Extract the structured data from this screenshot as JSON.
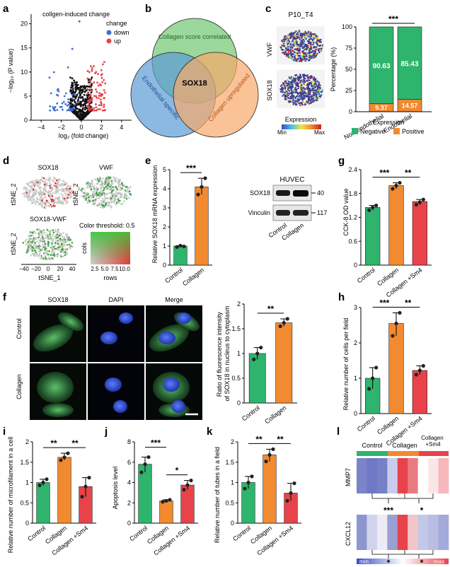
{
  "colors": {
    "green": "#2fb46e",
    "orange": "#f28a30",
    "red": "#e8434b",
    "blue": "#3d6fd6",
    "black": "#111111"
  },
  "panels": {
    "a": {
      "label": "a",
      "title": "collgen-induced change",
      "legend_title": "change",
      "legend_down": "down",
      "legend_up": "up",
      "ylabel": "−log₁₀ (P value)",
      "xlabel": "log₂ (fold change)",
      "xticks": [
        "−4",
        "−2",
        "0",
        "2",
        "4"
      ],
      "yticks": [
        "0",
        "5",
        "10",
        "15",
        "20"
      ]
    },
    "b": {
      "label": "b",
      "circle1": "Collagen score correlated",
      "circle2": "Endothelial specific",
      "circle3": "Collagen upregulated",
      "center": "SOX18"
    },
    "c": {
      "label": "c",
      "sample": "P10_T4",
      "row1": "VWF",
      "row2": "SOX18",
      "expr_title": "Expression",
      "expr_min": "Min",
      "expr_max": "Max",
      "ylabel": "Percentage (%)",
      "yticks": [
        "0",
        "25",
        "50",
        "75",
        "100"
      ],
      "sig": "***",
      "cats": [
        "Non-endothelial",
        "Endothelial"
      ],
      "neg": [
        "90.63",
        "85.43"
      ],
      "pos": [
        "9.37",
        "14.57"
      ],
      "legend_title": "Expression",
      "legend_neg": "Negative",
      "legend_pos": "Positive"
    },
    "d": {
      "label": "d",
      "p1": "SOX18",
      "p2": "VWF",
      "p3": "SOX18-VWF",
      "tsne1": "tSNE_1",
      "tsne2": "tSNE_2",
      "threshold": "Color threshold: 0.5",
      "cols": "cols",
      "rows": "rows",
      "xticks": [
        "−40",
        "−20",
        "0",
        "20",
        "40"
      ],
      "rowticks": [
        "2.5",
        "5.0",
        "7.5",
        "10.0"
      ]
    },
    "e": {
      "label": "e",
      "ylabel": "Relative SOX18 mRNA expression",
      "sig": "***",
      "wb_title": "HUVEC",
      "wb_row1": "SOX18",
      "wb_row2": "Vinculin",
      "wb_kd1": "40",
      "wb_kd2": "117",
      "wb_cols": [
        "Control",
        "Collagen"
      ]
    },
    "f": {
      "label": "f",
      "cols": [
        "SOX18",
        "DAPI",
        "Merge"
      ],
      "rows": [
        "Control",
        "Collagen"
      ],
      "ylabel": "Ratio of fluorescence intensity of SOX18 in nucleus to cytoplasm",
      "sig": "**"
    },
    "g": {
      "label": "g",
      "ylabel": "CCK-8 OD value",
      "sig1": "***",
      "sig2": "**"
    },
    "h": {
      "label": "h",
      "ylabel": "Relative number of cells per field",
      "sig1": "***",
      "sig2": "**"
    },
    "i": {
      "label": "i",
      "ylabel": "Relative number of microfilament in a cell",
      "sig1": "**",
      "sig2": "**"
    },
    "j": {
      "label": "j",
      "ylabel": "Apoptosis level",
      "sig1": "***",
      "sig2": "*"
    },
    "k": {
      "label": "k",
      "ylabel": "Relative number of tubes in a field",
      "sig1": "**",
      "sig2": "**"
    },
    "l": {
      "label": "l",
      "groups": [
        "Control",
        "Collagen",
        "Collagen +Sm4"
      ],
      "genes": [
        "MMP7",
        "CXCL12"
      ],
      "sig_mmp7": [
        "***",
        "*"
      ],
      "sig_cxcl12": [
        "*",
        "*"
      ],
      "scale_min": "min",
      "scale_max": "max"
    }
  },
  "chart_data": [
    {
      "id": "e",
      "type": "bar",
      "categories": [
        "Control",
        "Collagen"
      ],
      "values": [
        1.0,
        4.1
      ],
      "ylim": [
        0,
        5
      ],
      "yticks": [
        0,
        1,
        2,
        3,
        4,
        5
      ],
      "points": [
        [
          0.95,
          1.02,
          0.98
        ],
        [
          3.7,
          4.1,
          4.55
        ]
      ]
    },
    {
      "id": "f",
      "type": "bar",
      "categories": [
        "Control",
        "Collagen"
      ],
      "values": [
        1.0,
        1.62
      ],
      "ylim": [
        0,
        2.0
      ],
      "yticks": [
        0,
        0.5,
        1.0,
        1.5,
        2.0
      ],
      "points": [
        [
          0.88,
          1.0,
          1.12
        ],
        [
          1.55,
          1.62,
          1.7
        ]
      ]
    },
    {
      "id": "g",
      "type": "bar",
      "categories": [
        "Control",
        "Collagen",
        "Collagen +Sm4"
      ],
      "values": [
        1.45,
        2.0,
        1.6
      ],
      "ylim": [
        0,
        2.4
      ],
      "yticks": [
        0,
        0.6,
        1.2,
        1.8,
        2.4
      ],
      "points": [
        [
          1.38,
          1.45,
          1.5
        ],
        [
          1.92,
          2.0,
          2.07
        ],
        [
          1.52,
          1.58,
          1.65
        ]
      ]
    },
    {
      "id": "h",
      "type": "bar",
      "categories": [
        "Control",
        "Collagen",
        "Collagen +Sm4"
      ],
      "values": [
        1.0,
        2.55,
        1.22
      ],
      "ylim": [
        0,
        3
      ],
      "yticks": [
        0,
        1,
        2,
        3
      ],
      "points": [
        [
          0.7,
          1.0,
          1.3
        ],
        [
          2.2,
          2.55,
          2.85
        ],
        [
          1.1,
          1.22,
          1.35
        ]
      ]
    },
    {
      "id": "i",
      "type": "bar",
      "categories": [
        "Control",
        "Collagen",
        "Collagen +Sm4"
      ],
      "values": [
        1.0,
        1.62,
        0.9
      ],
      "ylim": [
        0,
        2.0
      ],
      "yticks": [
        0,
        0.5,
        1.0,
        1.5,
        2.0
      ],
      "points": [
        [
          0.93,
          1.0,
          1.08
        ],
        [
          1.55,
          1.62,
          1.72
        ],
        [
          0.65,
          0.9,
          1.12
        ]
      ]
    },
    {
      "id": "j",
      "type": "bar",
      "categories": [
        "Control",
        "Collagen",
        "Collagen +Sm4"
      ],
      "values": [
        5.8,
        2.2,
        3.75
      ],
      "ylim": [
        0,
        8
      ],
      "yticks": [
        0,
        2,
        4,
        6,
        8
      ],
      "points": [
        [
          5.0,
          5.8,
          6.5
        ],
        [
          2.1,
          2.2,
          2.3
        ],
        [
          3.3,
          3.75,
          4.2
        ]
      ]
    },
    {
      "id": "k",
      "type": "bar",
      "categories": [
        "Control",
        "Collagen",
        "Collagen +Sm4"
      ],
      "values": [
        1.0,
        1.68,
        0.74
      ],
      "ylim": [
        0,
        2.0
      ],
      "yticks": [
        0,
        0.5,
        1.0,
        1.5,
        2.0
      ],
      "points": [
        [
          0.85,
          1.0,
          1.15
        ],
        [
          1.52,
          1.68,
          1.82
        ],
        [
          0.55,
          0.74,
          0.98
        ]
      ]
    }
  ]
}
